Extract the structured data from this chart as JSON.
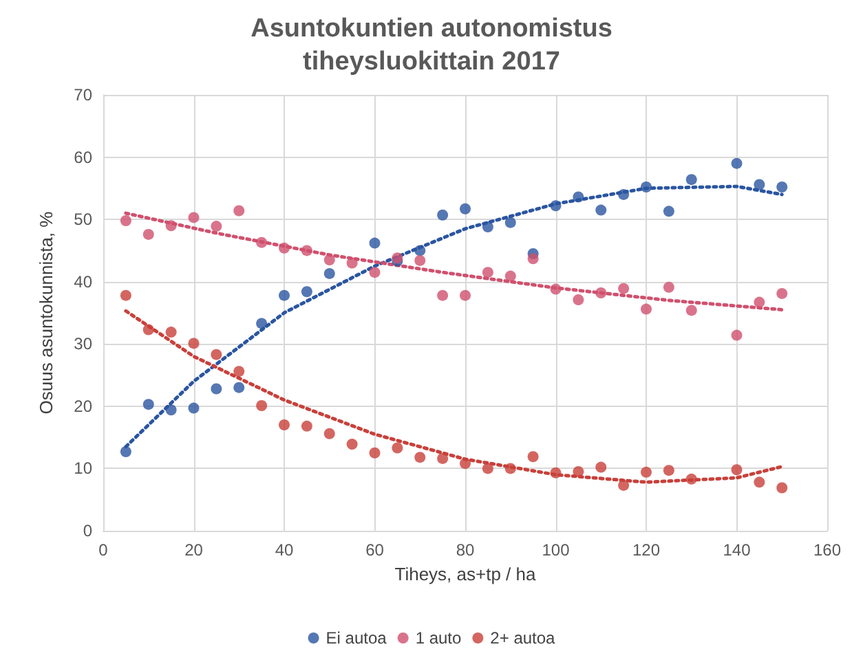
{
  "chart_data": {
    "type": "scatter",
    "title": "Asuntokuntien autonomistus\ntiheysluokittain 2017",
    "xlabel": "Tiheys, as+tp / ha",
    "ylabel": "Osuus asuntokunnista, %",
    "x": [
      5,
      10,
      15,
      20,
      25,
      30,
      35,
      40,
      45,
      50,
      55,
      60,
      65,
      70,
      75,
      80,
      85,
      90,
      95,
      100,
      105,
      110,
      115,
      120,
      125,
      130,
      135,
      140,
      145,
      150
    ],
    "series": [
      {
        "name": "Ei autoa",
        "color": "#2a55a0",
        "marker": "circle",
        "values": [
          12.7,
          20.3,
          19.4,
          19.7,
          22.8,
          23,
          33.3,
          37.8,
          38.4,
          41.3,
          null,
          46.2,
          43.3,
          45,
          50.7,
          51.7,
          48.8,
          49.5,
          44.5,
          52.2,
          53.6,
          51.5,
          54,
          55.2,
          51.3,
          56.4,
          null,
          59,
          55.6,
          55.2
        ]
      },
      {
        "name": "1 auto",
        "color": "#d0506e",
        "marker": "circle",
        "values": [
          49.8,
          47.6,
          49,
          50.3,
          48.9,
          51.4,
          46.3,
          45.4,
          45,
          43.5,
          43,
          41.5,
          43.8,
          43.4,
          37.8,
          37.8,
          41.5,
          40.9,
          43.7,
          38.8,
          37.1,
          38.2,
          38.9,
          35.6,
          39.1,
          35.4,
          null,
          31.4,
          36.7,
          38.1
        ]
      },
      {
        "name": "2+ autoa",
        "color": "#c8403a",
        "marker": "circle",
        "values": [
          37.8,
          32.3,
          31.9,
          30.1,
          28.3,
          25.6,
          20.1,
          17,
          16.8,
          15.6,
          13.9,
          12.5,
          13.3,
          11.8,
          11.6,
          10.8,
          10,
          10,
          11.9,
          9.3,
          9.5,
          10.2,
          7.3,
          9.4,
          9.7,
          8.3,
          null,
          9.8,
          7.8,
          6.9
        ]
      },
      {
        "type": "line",
        "color": "#2a55a0",
        "marker": "none",
        "line_style": "dotted",
        "x": [
          5,
          20,
          40,
          60,
          80,
          100,
          120,
          140,
          150
        ],
        "values": [
          13.5,
          24,
          35,
          42.5,
          48.5,
          52.5,
          55,
          55.3,
          54
        ]
      },
      {
        "type": "line",
        "color": "#d0506e",
        "marker": "none",
        "line_style": "dotted",
        "x": [
          5,
          25,
          50,
          75,
          100,
          125,
          150
        ],
        "values": [
          51,
          47.8,
          44.3,
          41.5,
          39,
          37,
          35.5
        ]
      },
      {
        "type": "line",
        "color": "#c8403a",
        "marker": "none",
        "line_style": "dotted",
        "x": [
          5,
          20,
          40,
          60,
          80,
          100,
          120,
          140,
          150
        ],
        "values": [
          35.3,
          28,
          21,
          15.5,
          11.5,
          9,
          7.8,
          8.5,
          10.3
        ]
      }
    ],
    "xlim": [
      0,
      160
    ],
    "xticks": [
      0,
      20,
      40,
      60,
      80,
      100,
      120,
      140,
      160
    ],
    "ylim": [
      0,
      70
    ],
    "yticks": [
      0,
      10,
      20,
      30,
      40,
      50,
      60,
      70
    ],
    "grid": true,
    "legend": "bottom"
  }
}
